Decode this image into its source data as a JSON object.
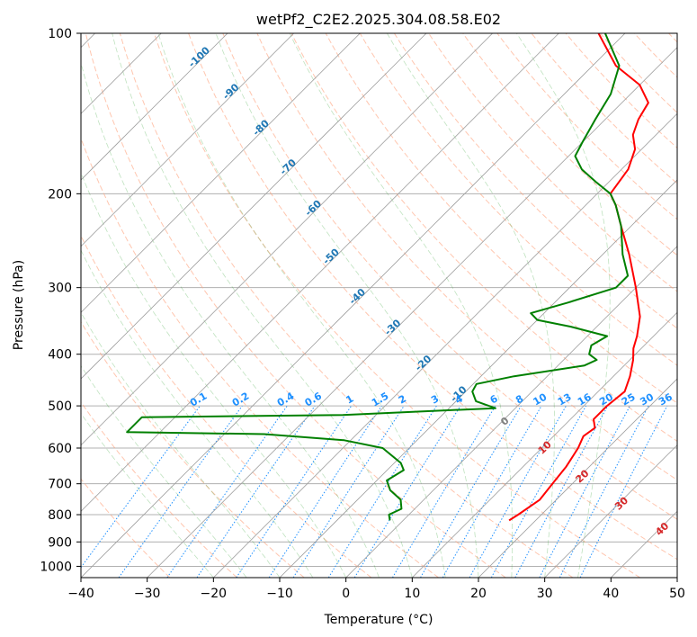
{
  "chart_data": {
    "type": "line",
    "subtype": "skew-t log-p diagram",
    "title": "wetPf2_C2E2.2025.304.08.58.E02",
    "xlabel": "Temperature (°C)",
    "ylabel": "Pressure (hPa)",
    "xlim": [
      -40,
      50
    ],
    "ylim_hpa": [
      1050,
      100
    ],
    "x_ticks": [
      -40,
      -30,
      -20,
      -10,
      0,
      10,
      20,
      30,
      40,
      50
    ],
    "x_tick_labels": [
      "−40",
      "−30",
      "−20",
      "−10",
      "0",
      "10",
      "20",
      "30",
      "40",
      "50"
    ],
    "y_ticks": [
      100,
      200,
      300,
      400,
      500,
      600,
      700,
      800,
      900,
      1000
    ],
    "y_tick_labels": [
      "100",
      "200",
      "300",
      "400",
      "500",
      "600",
      "700",
      "800",
      "900",
      "1000"
    ],
    "isotherm_step_c": 10,
    "series": [
      {
        "name": "Temperature",
        "color": "#ff0000",
        "points": [
          {
            "p": 820,
            "t": 16.0
          },
          {
            "p": 800,
            "t": 16.5
          },
          {
            "p": 750,
            "t": 17.5
          },
          {
            "p": 700,
            "t": 17.0
          },
          {
            "p": 650,
            "t": 16.5
          },
          {
            "p": 600,
            "t": 15.5
          },
          {
            "p": 570,
            "t": 14.5
          },
          {
            "p": 550,
            "t": 15.0
          },
          {
            "p": 530,
            "t": 13.5
          },
          {
            "p": 500,
            "t": 13.5
          },
          {
            "p": 470,
            "t": 14.0
          },
          {
            "p": 440,
            "t": 12.5
          },
          {
            "p": 410,
            "t": 10.5
          },
          {
            "p": 390,
            "t": 8.8
          },
          {
            "p": 370,
            "t": 7.5
          },
          {
            "p": 340,
            "t": 5.0
          },
          {
            "p": 300,
            "t": 0.0
          },
          {
            "p": 260,
            "t": -6.0
          },
          {
            "p": 230,
            "t": -11.5
          },
          {
            "p": 210,
            "t": -15.5
          },
          {
            "p": 200,
            "t": -18.0
          },
          {
            "p": 180,
            "t": -19.0
          },
          {
            "p": 165,
            "t": -21.0
          },
          {
            "p": 155,
            "t": -23.5
          },
          {
            "p": 145,
            "t": -25.0
          },
          {
            "p": 135,
            "t": -26.0
          },
          {
            "p": 125,
            "t": -30.0
          },
          {
            "p": 115,
            "t": -36.5
          },
          {
            "p": 100,
            "t": -44.0
          }
        ]
      },
      {
        "name": "Dewpoint",
        "color": "#008000",
        "points": [
          {
            "p": 820,
            "t": -2.0
          },
          {
            "p": 800,
            "t": -3.0
          },
          {
            "p": 780,
            "t": -2.0
          },
          {
            "p": 750,
            "t": -3.5
          },
          {
            "p": 720,
            "t": -6.5
          },
          {
            "p": 690,
            "t": -8.5
          },
          {
            "p": 660,
            "t": -7.5
          },
          {
            "p": 640,
            "t": -9.0
          },
          {
            "p": 600,
            "t": -14.0
          },
          {
            "p": 580,
            "t": -21.0
          },
          {
            "p": 565,
            "t": -34.0
          },
          {
            "p": 560,
            "t": -55.0
          },
          {
            "p": 525,
            "t": -55.0
          },
          {
            "p": 520,
            "t": -25.0
          },
          {
            "p": 505,
            "t": -3.0
          },
          {
            "p": 490,
            "t": -7.0
          },
          {
            "p": 470,
            "t": -9.0
          },
          {
            "p": 455,
            "t": -9.5
          },
          {
            "p": 440,
            "t": -5.0
          },
          {
            "p": 420,
            "t": 4.0
          },
          {
            "p": 410,
            "t": 5.0
          },
          {
            "p": 400,
            "t": 3.0
          },
          {
            "p": 385,
            "t": 2.0
          },
          {
            "p": 370,
            "t": 3.0
          },
          {
            "p": 355,
            "t": -4.0
          },
          {
            "p": 345,
            "t": -10.0
          },
          {
            "p": 335,
            "t": -12.0
          },
          {
            "p": 320,
            "t": -8.0
          },
          {
            "p": 300,
            "t": -3.0
          },
          {
            "p": 285,
            "t": -3.0
          },
          {
            "p": 260,
            "t": -7.0
          },
          {
            "p": 230,
            "t": -11.5
          },
          {
            "p": 210,
            "t": -15.5
          },
          {
            "p": 200,
            "t": -18.0
          },
          {
            "p": 190,
            "t": -22.0
          },
          {
            "p": 180,
            "t": -26.0
          },
          {
            "p": 170,
            "t": -29.0
          },
          {
            "p": 160,
            "t": -30.0
          },
          {
            "p": 145,
            "t": -31.5
          },
          {
            "p": 130,
            "t": -33.0
          },
          {
            "p": 115,
            "t": -36.0
          },
          {
            "p": 100,
            "t": -43.0
          }
        ]
      }
    ],
    "background_lines": {
      "dry_adiabats_theta_c": [
        -30,
        -20,
        -10,
        0,
        10,
        20,
        30,
        40,
        50,
        60,
        70,
        80,
        90,
        100,
        110,
        120,
        130,
        140,
        150,
        160,
        170,
        180,
        190,
        200,
        210
      ],
      "moist_adiabats_c": [
        -20,
        -15,
        -10,
        -5,
        0,
        5,
        10,
        15,
        20,
        25,
        30,
        35
      ],
      "mixing_ratios_gkg": [
        0.1,
        0.2,
        0.4,
        0.6,
        1,
        1.5,
        2,
        3,
        4,
        6,
        8,
        10,
        13,
        16,
        20,
        25,
        30,
        36
      ]
    },
    "isotherm_labels": {
      "values": [
        "-100",
        "-90",
        "-80",
        "-70",
        "-60",
        "-50",
        "-40",
        "-30",
        "-20",
        "-10"
      ],
      "color": "#1f77b4"
    },
    "mixing_ratio_labels": {
      "values": [
        "0.1",
        "0.2",
        "0.4",
        "0.6",
        "1",
        "1.5",
        "2",
        "3",
        "4",
        "6",
        "8",
        "10",
        "13",
        "16",
        "20",
        "25",
        "30",
        "36"
      ],
      "color": "#1e90ff",
      "pressure_hpa": 500
    },
    "warm_isotherm_labels": [
      {
        "text": "0",
        "value": 0,
        "color": "#808080"
      },
      {
        "text": "10",
        "value": 10,
        "color": "#d62728"
      },
      {
        "text": "20",
        "value": 20,
        "color": "#d62728"
      },
      {
        "text": "30",
        "value": 30,
        "color": "#d62728"
      },
      {
        "text": "40",
        "value": 40,
        "color": "#d62728"
      }
    ]
  }
}
